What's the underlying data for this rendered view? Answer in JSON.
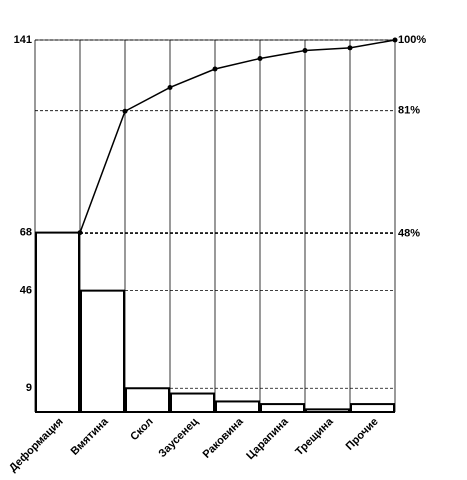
{
  "chart_data": {
    "type": "pareto",
    "categories": [
      "Деформация",
      "Вмятина",
      "Скол",
      "Заусенец",
      "Раковина",
      "Царапина",
      "Трещина",
      "Прочие"
    ],
    "series": [
      {
        "type": "bar",
        "color": "#000000",
        "values": [
          68,
          46,
          9,
          7,
          4,
          3,
          1,
          3
        ]
      },
      {
        "type": "line",
        "color": "#000000",
        "values": [
          68,
          114,
          123,
          130,
          134,
          137,
          138,
          141
        ]
      }
    ],
    "ylim": [
      0,
      141
    ],
    "yticks": [
      9,
      46,
      68,
      141
    ],
    "y2lim": [
      0,
      100
    ],
    "y2ticks": [
      {
        "value": 48,
        "label": "48%"
      },
      {
        "value": 81,
        "label": "81%"
      },
      {
        "value": 100,
        "label": "100%"
      }
    ],
    "grid": true
  }
}
